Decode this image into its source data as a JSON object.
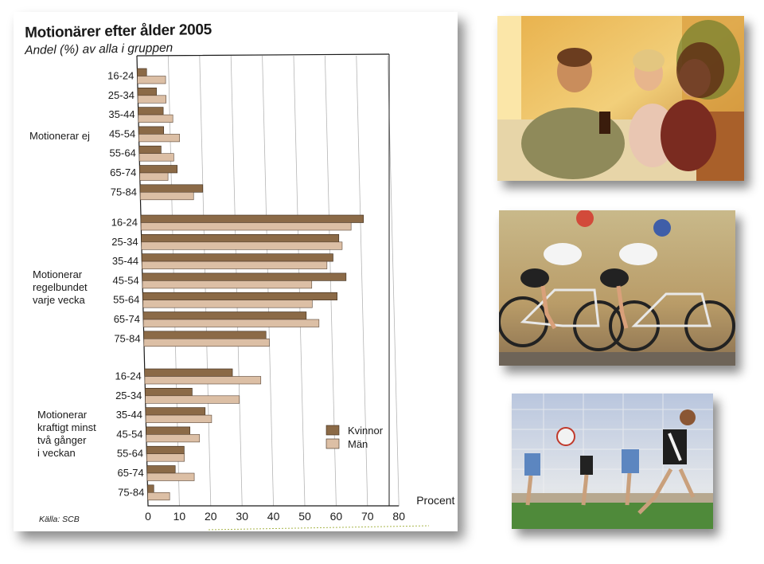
{
  "chart_data": {
    "type": "bar",
    "orientation": "horizontal",
    "title": "Motionärer efter ålder 2005",
    "subtitle": "Andel (%) av alla i gruppen",
    "groups": [
      {
        "label": "Motionerar ej"
      },
      {
        "label": "Motionerar regelbundet varje vecka"
      },
      {
        "label": "Motionerar kraftigt minst två gånger i veckan"
      }
    ],
    "categories": [
      "16-24",
      "25-34",
      "35-44",
      "45-54",
      "55-64",
      "65-74",
      "75-84"
    ],
    "series": [
      {
        "name": "Kvinnor",
        "color": "#8b6a47",
        "values": [
          [
            3,
            6,
            8,
            8,
            7,
            12,
            20
          ],
          [
            71,
            63,
            61,
            65,
            62,
            52,
            39
          ],
          [
            28,
            15,
            19,
            14,
            12,
            9,
            2
          ]
        ]
      },
      {
        "name": "Män",
        "color": "#dcbfa5",
        "values": [
          [
            9,
            9,
            11,
            13,
            11,
            9,
            17
          ],
          [
            67,
            64,
            59,
            54,
            54,
            56,
            40
          ],
          [
            37,
            30,
            21,
            17,
            12,
            15,
            7
          ]
        ]
      }
    ],
    "xlabel": "Procent",
    "xlim": [
      0,
      80
    ],
    "xticks": [
      0,
      10,
      20,
      30,
      40,
      50,
      60,
      70,
      80
    ],
    "grid": true,
    "legend_position": "lower-right",
    "source": "Källa: SCB"
  },
  "photos": [
    {
      "name": "family-photo"
    },
    {
      "name": "cyclists-photo"
    },
    {
      "name": "soccer-photo"
    }
  ]
}
